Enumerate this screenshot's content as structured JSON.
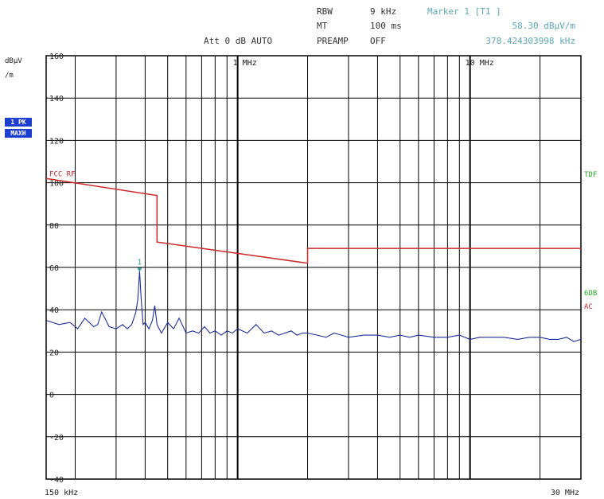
{
  "header": {
    "rbw_label": "RBW",
    "rbw_value": "9 kHz",
    "mt_label": "MT",
    "mt_value": "100 ms",
    "att": "Att 0 dB AUTO",
    "preamp_label": "PREAMP",
    "preamp_value": "OFF",
    "marker_title": "Marker 1 [T1 ]",
    "marker_level": "58.30 dBµV/m",
    "marker_freq": "378.424303998 kHz"
  },
  "left_panel": {
    "unit_line1": "dBµV",
    "unit_line2": "/m",
    "badge1": "1 PK",
    "badge2": "MAXH"
  },
  "right_panel": {
    "tdf": "TDF",
    "sixdb": "6DB",
    "ac": "AC"
  },
  "colors": {
    "limit": "#cc2a2a",
    "trace": "#1a2f9a",
    "marker": "#2aa198",
    "accent_green": "#22aa22",
    "badge": "#1c3fd0"
  },
  "chart_data": {
    "type": "line",
    "x_scale": "log",
    "x_unit": "Hz",
    "xlim": [
      150000,
      30000000
    ],
    "ylim": [
      -40,
      160
    ],
    "y_ticks": [
      160,
      140,
      120,
      100,
      80,
      60,
      40,
      20,
      0,
      -20,
      -40
    ],
    "x_tick_labels": [
      {
        "f": 150000,
        "label": "150 kHz"
      },
      {
        "f": 1000000,
        "label": "1 MHz"
      },
      {
        "f": 10000000,
        "label": "10 MHz"
      },
      {
        "f": 30000000,
        "label": "30 MHz"
      }
    ],
    "grid": true,
    "limit_label": "FCC RF",
    "marker": {
      "id": "1",
      "freq": 378424.303998,
      "level": 58.3
    },
    "series": [
      {
        "name": "FCC RF",
        "x": [
          150000,
          450000,
          450000,
          2000000,
          2000000,
          30000000
        ],
        "y": [
          102,
          94,
          72,
          62,
          69,
          69
        ]
      },
      {
        "x": [
          150000,
          170000,
          190000,
          205000,
          220000,
          240000,
          250000,
          260000,
          280000,
          300000,
          320000,
          335000,
          350000,
          365000,
          372000,
          378400,
          385000,
          392000,
          400000,
          415000,
          430000,
          440000,
          450000,
          470000,
          500000,
          530000,
          560000,
          600000,
          640000,
          680000,
          720000,
          760000,
          800000,
          850000,
          900000,
          950000,
          1000000,
          1100000,
          1200000,
          1300000,
          1400000,
          1500000,
          1600000,
          1700000,
          1800000,
          1900000,
          2000000,
          2200000,
          2400000,
          2600000,
          2800000,
          3000000,
          3500000,
          4000000,
          4500000,
          5000000,
          5500000,
          6000000,
          7000000,
          8000000,
          9000000,
          10000000,
          11000000,
          12000000,
          14000000,
          16000000,
          18000000,
          20000000,
          22000000,
          24000000,
          26000000,
          28000000,
          30000000
        ],
        "y": [
          35,
          33,
          34,
          31,
          36,
          32,
          33,
          39,
          32,
          31,
          33,
          31,
          33,
          39,
          45,
          58.3,
          44,
          33,
          34,
          31,
          35,
          42,
          33,
          29,
          34,
          31,
          36,
          29,
          30,
          29,
          32,
          29,
          30,
          28,
          30,
          29,
          31,
          29,
          33,
          29,
          30,
          28,
          29,
          30,
          28,
          29,
          29,
          28,
          27,
          29,
          28,
          27,
          28,
          28,
          27,
          28,
          27,
          28,
          27,
          27,
          28,
          26,
          27,
          27,
          27,
          26,
          27,
          27,
          26,
          26,
          27,
          25,
          26
        ]
      }
    ]
  }
}
